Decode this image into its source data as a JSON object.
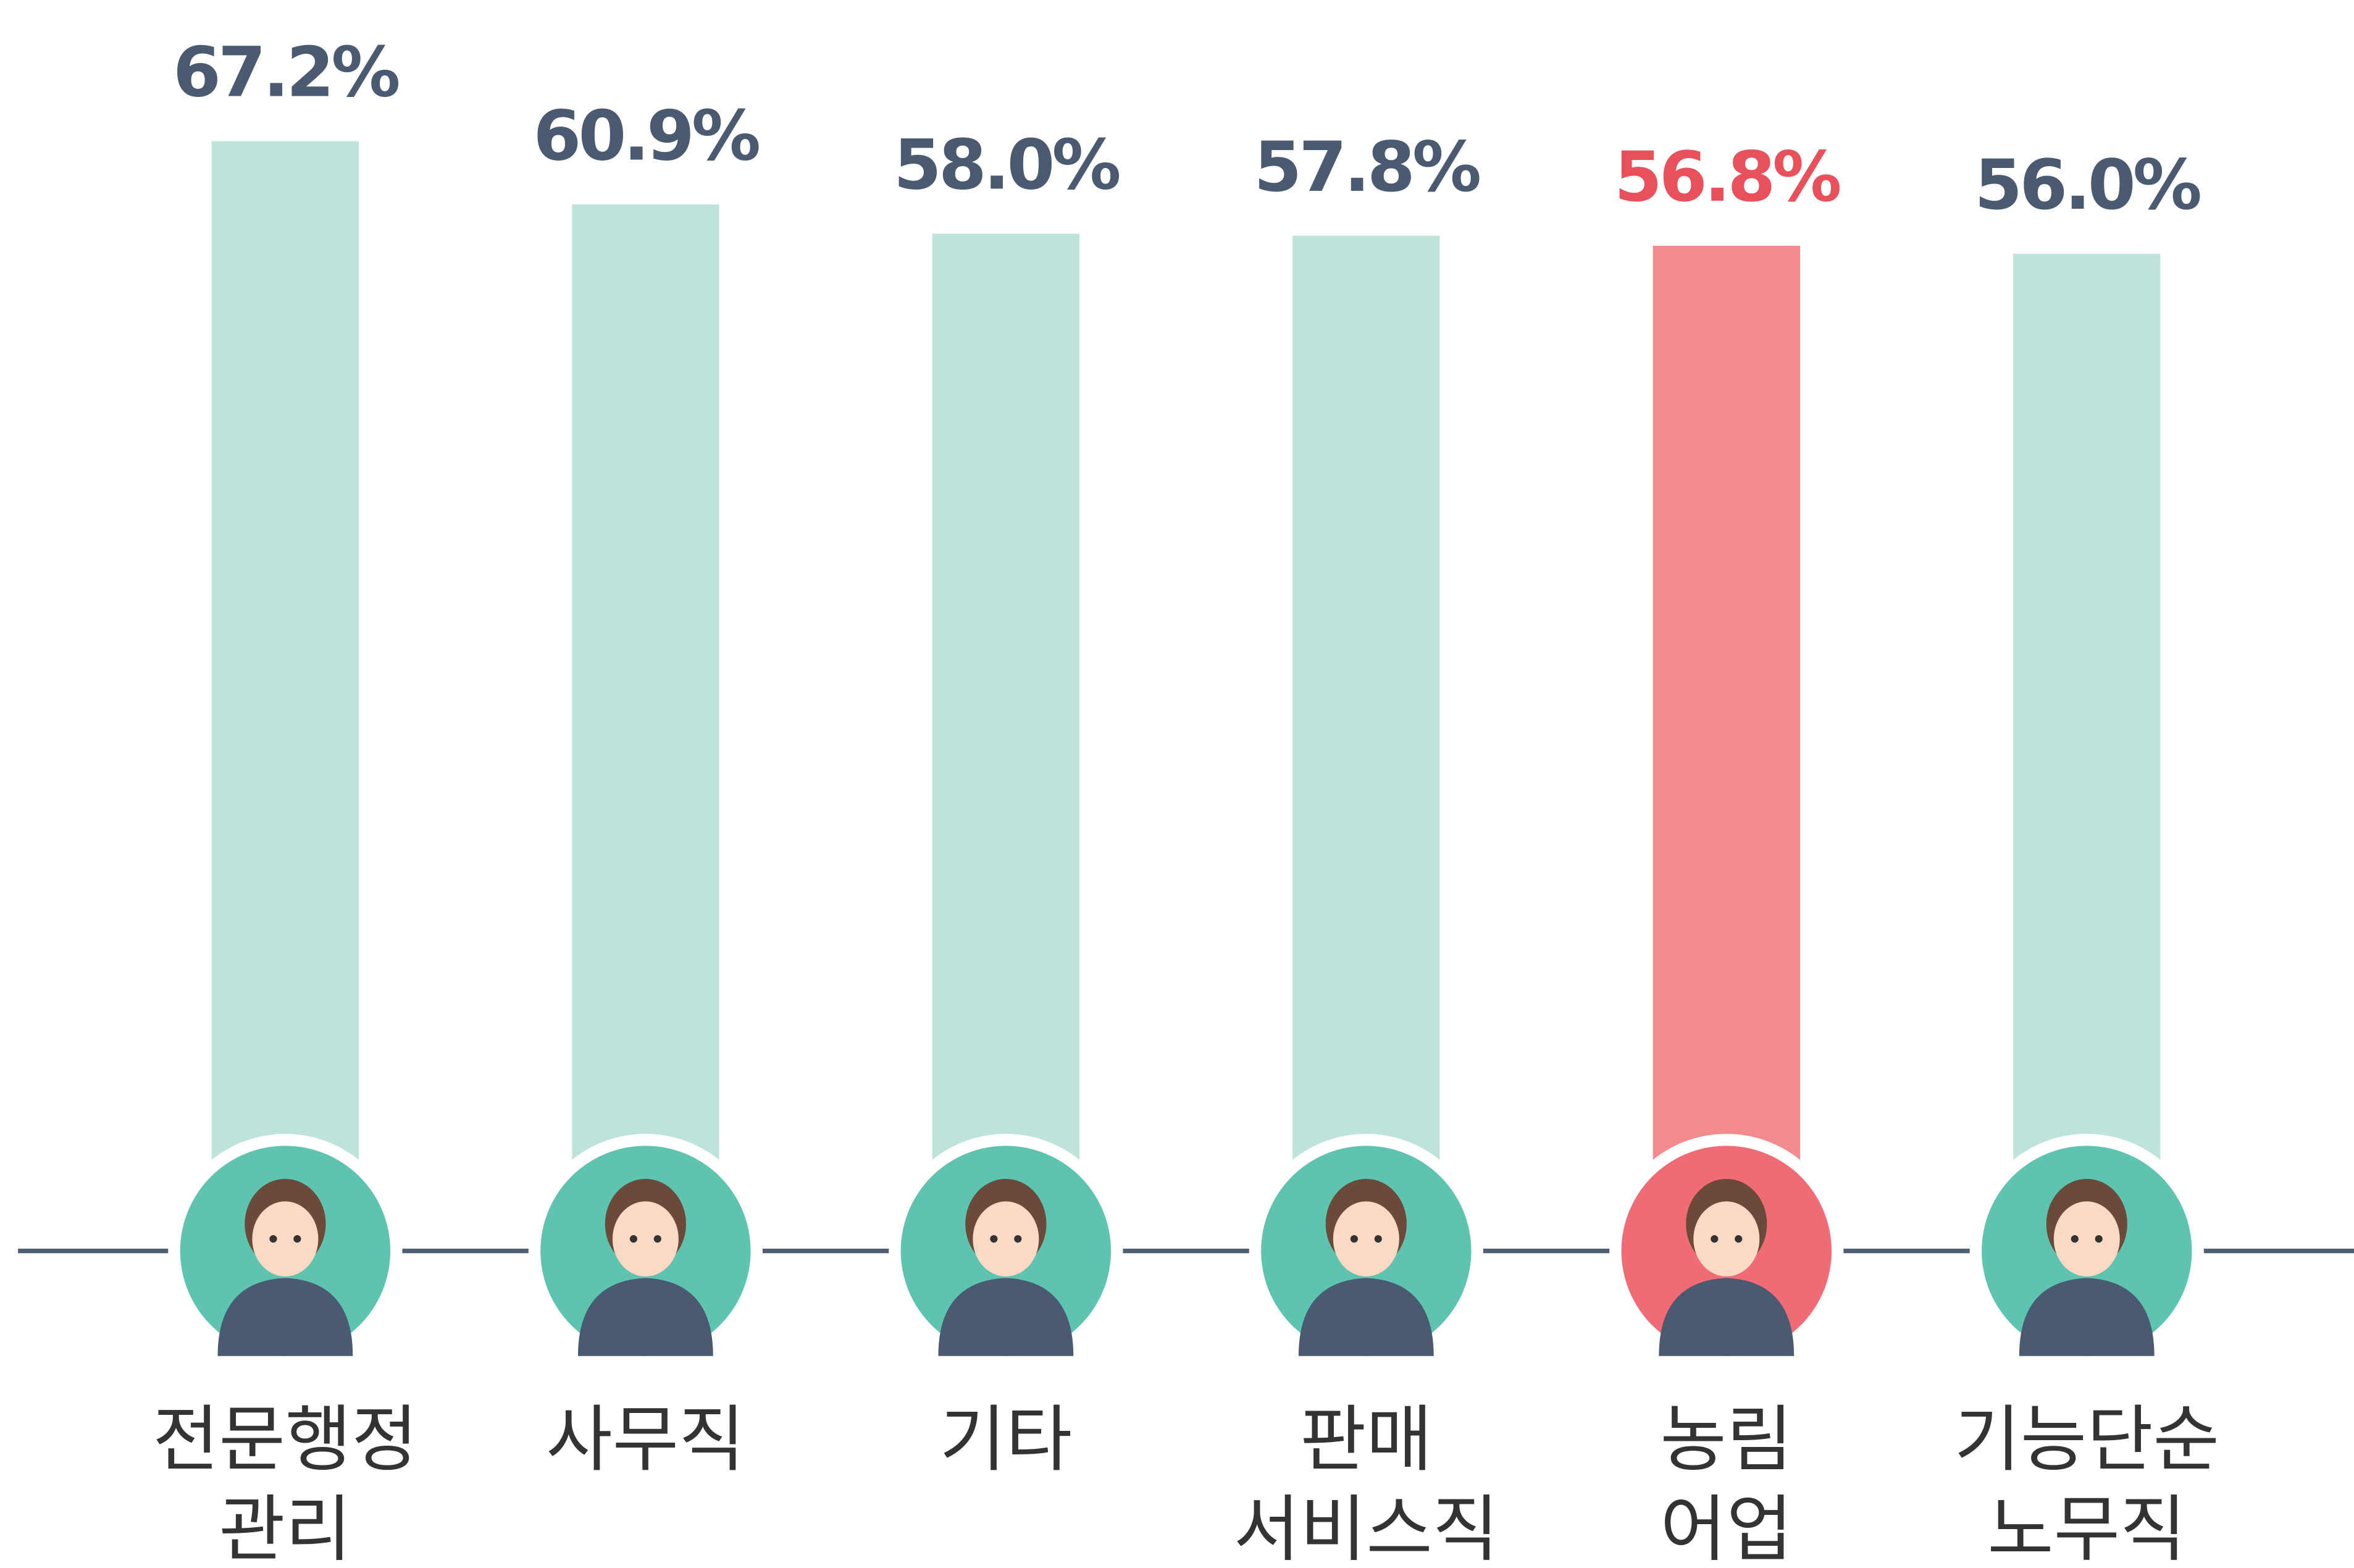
{
  "chart_data": {
    "type": "bar",
    "categories": [
      "전문행정\n관리",
      "사무직",
      "기타",
      "판매\n서비스직",
      "농림\n어업",
      "기능단순\n노무직"
    ],
    "values": [
      67.2,
      60.9,
      58.0,
      57.8,
      56.8,
      56.0
    ],
    "value_labels": [
      "67.2%",
      "60.9%",
      "58.0%",
      "57.8%",
      "56.8%",
      "56.0%"
    ],
    "colors": [
      "#bde3db",
      "#bde3db",
      "#bde3db",
      "#bde3db",
      "#f28b8e",
      "#bde3db"
    ],
    "label_colors": [
      "#4a5a70",
      "#4a5a70",
      "#4a5a70",
      "#4a5a70",
      "#e8505b",
      "#4a5a70"
    ],
    "circle_colors": [
      "#5ec4b0",
      "#5ec4b0",
      "#5ec4b0",
      "#5ec4b0",
      "#f06b75",
      "#5ec4b0"
    ],
    "ylim": [
      -43.1,
      81.2
    ]
  }
}
